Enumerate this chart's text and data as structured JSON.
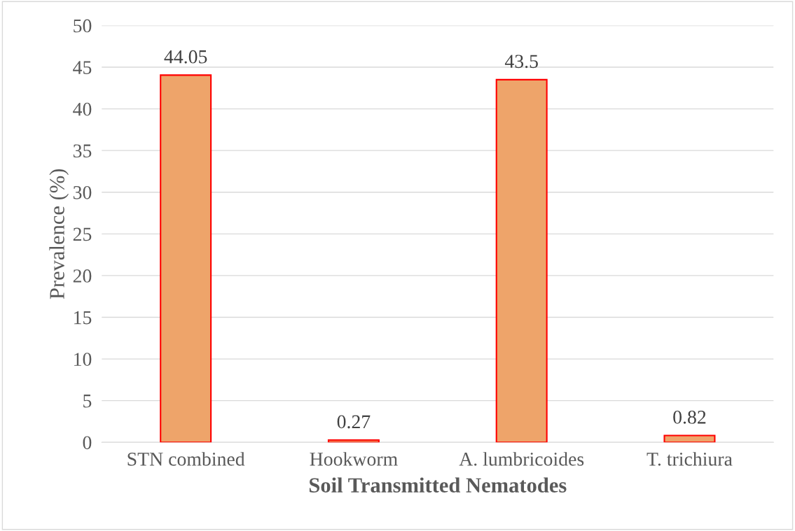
{
  "chart_data": {
    "type": "bar",
    "xlabel": "Soil Transmitted Nematodes",
    "ylabel": "Prevalence (%)",
    "categories": [
      "STN combined",
      "Hookworm",
      "A. lumbricoides",
      "T. trichiura"
    ],
    "values": [
      44.05,
      0.27,
      43.5,
      0.82
    ],
    "color": "#eea46a",
    "ylim": [
      0,
      50
    ],
    "yticks": [
      0,
      5,
      10,
      15,
      20,
      25,
      30,
      35,
      40,
      45,
      50
    ],
    "grid": "y",
    "data_labels": true,
    "legend": false
  }
}
